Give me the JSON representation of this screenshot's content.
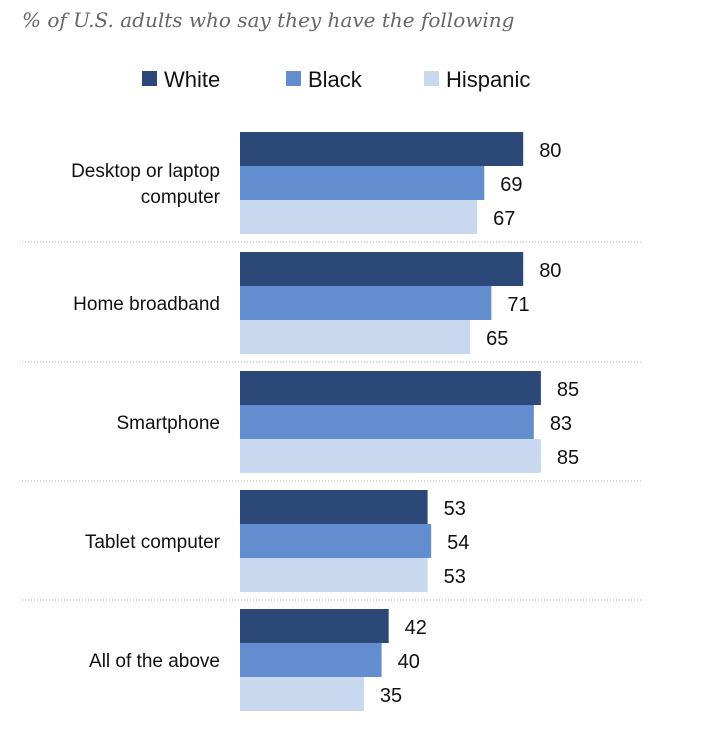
{
  "chart_data": {
    "type": "bar",
    "orientation": "horizontal",
    "subtitle": "% of U.S. adults who say they have the following",
    "categories": [
      "Desktop or laptop computer",
      "Home broadband",
      "Smartphone",
      "Tablet computer",
      "All of the above"
    ],
    "series": [
      {
        "name": "White",
        "color": "#2b4878",
        "values": [
          80,
          80,
          85,
          53,
          42
        ]
      },
      {
        "name": "Black",
        "color": "#628ecf",
        "values": [
          69,
          71,
          83,
          54,
          40
        ]
      },
      {
        "name": "Hispanic",
        "color": "#c8d8ef",
        "values": [
          67,
          65,
          85,
          53,
          35
        ]
      }
    ],
    "xlim": [
      0,
      100
    ],
    "legend": "top",
    "grid": false
  }
}
